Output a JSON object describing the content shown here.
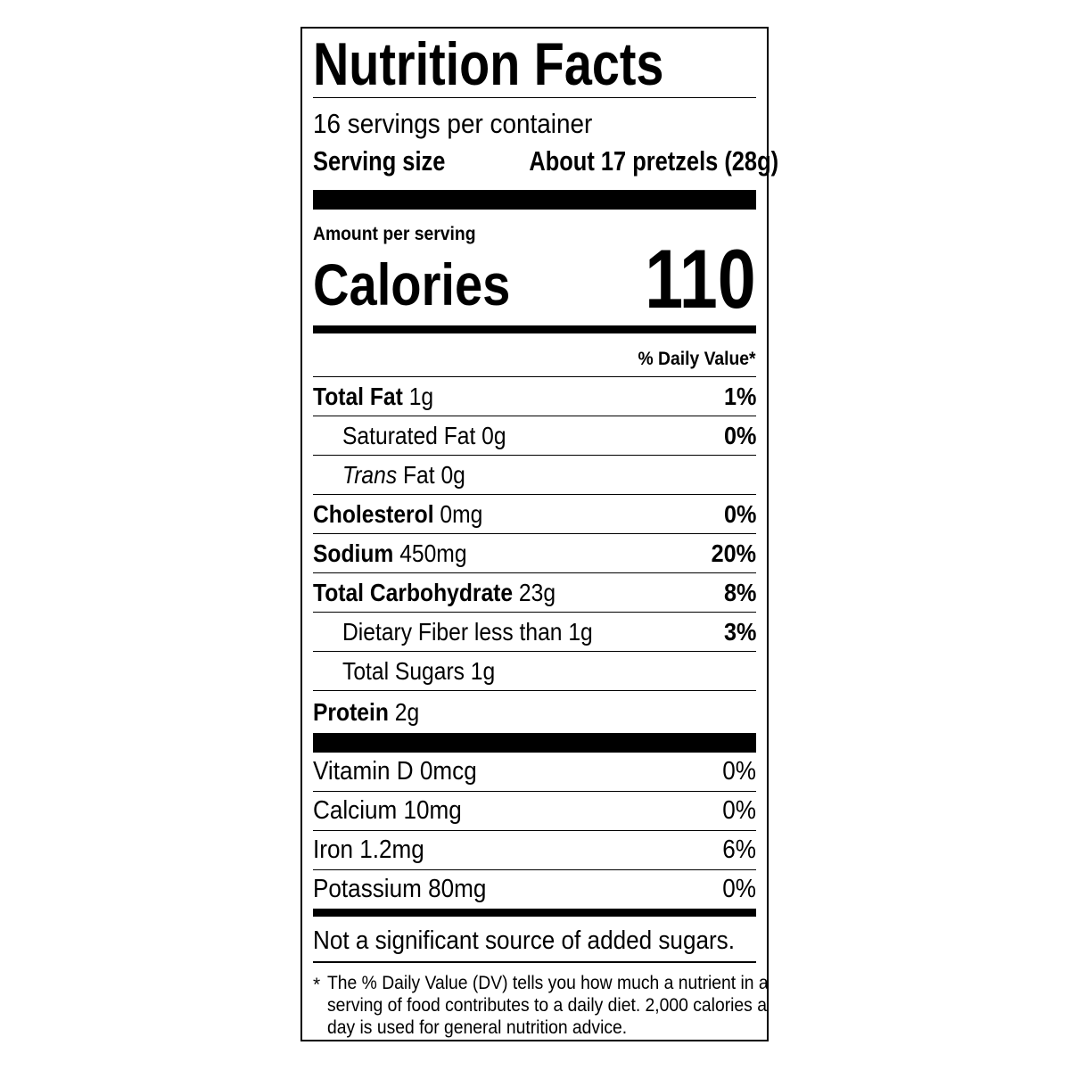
{
  "title": "Nutrition Facts",
  "servings_per_container": "16 servings per container",
  "serving_size": {
    "label": "Serving size",
    "value": "About 17 pretzels (28g)"
  },
  "amount_per_serving": "Amount per serving",
  "calories": {
    "label": "Calories",
    "value": "110"
  },
  "daily_value_header": "% Daily Value*",
  "nutrients": [
    {
      "name": "Total Fat",
      "amount": "1g",
      "dv": "1%"
    },
    {
      "name": "Saturated Fat",
      "amount": "0g",
      "dv": "0%"
    },
    {
      "name": "Trans",
      "suffix": "Fat",
      "amount": "0g",
      "dv": ""
    },
    {
      "name": "Cholesterol",
      "amount": "0mg",
      "dv": "0%"
    },
    {
      "name": "Sodium",
      "amount": "450mg",
      "dv": "20%"
    },
    {
      "name": "Total Carbohydrate",
      "amount": "23g",
      "dv": "8%"
    },
    {
      "name": "Dietary Fiber",
      "amount": "less than 1g",
      "dv": "3%"
    },
    {
      "name": "Total Sugars",
      "amount": "1g",
      "dv": ""
    },
    {
      "name": "Protein",
      "amount": "2g",
      "dv": ""
    }
  ],
  "vitamins": [
    {
      "label": "Vitamin D 0mcg",
      "dv": "0%"
    },
    {
      "label": "Calcium 10mg",
      "dv": "0%"
    },
    {
      "label": "Iron 1.2mg",
      "dv": "6%"
    },
    {
      "label": "Potassium 80mg",
      "dv": "0%"
    }
  ],
  "added_sugars_note": "Not a significant source of added sugars.",
  "footnote": {
    "marker": "*",
    "text": "The % Daily Value (DV) tells you how much a nutrient in a serving of food contributes to a daily diet. 2,000 calories a day is used for general nutrition advice."
  }
}
